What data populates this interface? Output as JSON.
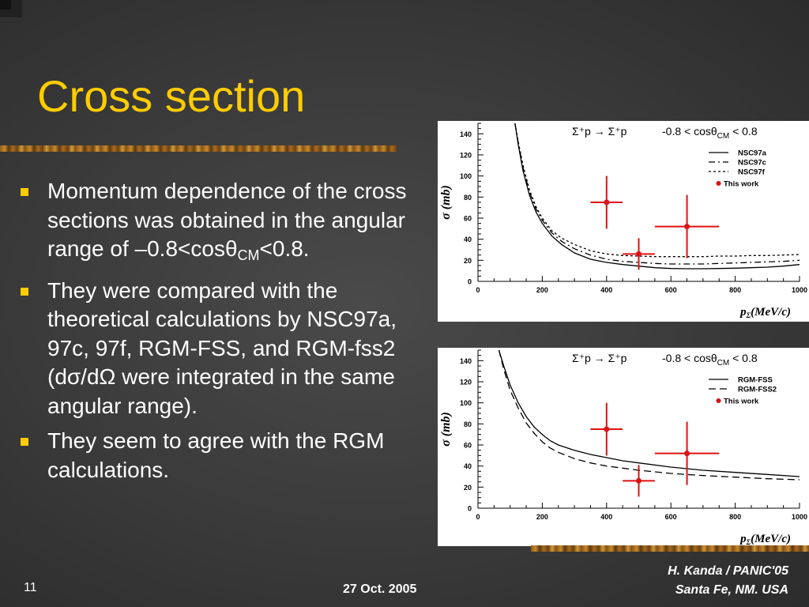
{
  "slide": {
    "title": "Cross section",
    "bullets": [
      {
        "pre": "Momentum dependence of the cross sections was obtained in the angular range of –0.8<cosθ",
        "sub": "CM",
        "post": "<0.8."
      },
      {
        "text": "They were compared with the theoretical calculations by NSC97a, 97c, 97f, RGM-FSS, and RGM-fss2 (dσ/dΩ were integrated in the same angular range)."
      },
      {
        "text": "They seem to agree with the RGM calculations."
      }
    ]
  },
  "footer": {
    "slide_number": "11",
    "date": "27 Oct. 2005",
    "credit_line1": "H. Kanda / PANIC'05",
    "credit_line2": "Santa Fe, NM. USA"
  },
  "chart_data": [
    {
      "type": "line",
      "reaction": "Σ⁺p → Σ⁺p",
      "angle_range": "-0.8 < cosθ",
      "angle_sub": "CM",
      "angle_tail": " < 0.8",
      "ylabel": "σ (mb)",
      "xlabel_main": "p",
      "xlabel_sub": "Σ",
      "xlabel_tail": "(MeV/c)",
      "xlim": [
        0,
        1000
      ],
      "ylim": [
        0,
        150
      ],
      "xticks": [
        "0",
        "200",
        "400",
        "600",
        "800",
        "1000"
      ],
      "yticks": [
        "0",
        "20",
        "40",
        "60",
        "80",
        "100",
        "120",
        "140"
      ],
      "series": [
        {
          "name": "NSC97a",
          "dash": "solid",
          "x": [
            115,
            125,
            140,
            160,
            180,
            200,
            230,
            260,
            300,
            350,
            400,
            450,
            500,
            550,
            600,
            650,
            700,
            750,
            800,
            850,
            900,
            950,
            1000
          ],
          "y": [
            150,
            130,
            105,
            82,
            66,
            55,
            43,
            35,
            27,
            21,
            18,
            16,
            14.5,
            13,
            12.2,
            12,
            12,
            12.2,
            12.5,
            13,
            13.5,
            14.5,
            16
          ]
        },
        {
          "name": "NSC97c",
          "dash": "dashdot",
          "x": [
            115,
            125,
            140,
            160,
            180,
            200,
            230,
            260,
            300,
            350,
            400,
            450,
            500,
            550,
            600,
            650,
            700,
            750,
            800,
            850,
            900,
            950,
            1000
          ],
          "y": [
            150,
            132,
            108,
            85,
            69,
            58,
            46,
            38,
            31,
            25,
            21,
            19,
            18,
            17,
            16.5,
            16.5,
            16.5,
            17,
            17.5,
            18,
            18.5,
            19,
            20
          ]
        },
        {
          "name": "NSC97f",
          "dash": "dotted",
          "x": [
            115,
            125,
            140,
            160,
            180,
            200,
            230,
            260,
            300,
            350,
            400,
            450,
            500,
            550,
            600,
            650,
            700,
            750,
            800,
            850,
            900,
            950,
            1000
          ],
          "y": [
            150,
            133,
            110,
            87,
            71,
            60,
            48,
            41,
            35,
            29,
            26,
            24.5,
            24,
            23.5,
            23.5,
            23.5,
            23.5,
            24,
            24,
            24.5,
            24.5,
            25,
            25.5
          ]
        }
      ],
      "points_label": "This work",
      "points": [
        {
          "x": 400,
          "y": 75,
          "xerr": 50,
          "yerr": 25
        },
        {
          "x": 500,
          "y": 26,
          "xerr": 50,
          "yerr": 15
        },
        {
          "x": 650,
          "y": 52,
          "xerr": 100,
          "yerr": 30
        }
      ]
    },
    {
      "type": "line",
      "reaction": "Σ⁺p → Σ⁺p",
      "angle_range": "-0.8 < cosθ",
      "angle_sub": "CM",
      "angle_tail": " < 0.8",
      "ylabel": "σ (mb)",
      "xlabel_main": "p",
      "xlabel_sub": "Σ",
      "xlabel_tail": "(MeV/c)",
      "xlim": [
        0,
        1000
      ],
      "ylim": [
        0,
        150
      ],
      "xticks": [
        "0",
        "200",
        "400",
        "600",
        "800",
        "1000"
      ],
      "yticks": [
        "0",
        "20",
        "40",
        "60",
        "80",
        "100",
        "120",
        "140"
      ],
      "series": [
        {
          "name": "RGM-FSS",
          "dash": "solid",
          "x": [
            65,
            80,
            100,
            125,
            150,
            175,
            200,
            225,
            250,
            300,
            350,
            400,
            450,
            500,
            600,
            700,
            800,
            900,
            1000
          ],
          "y": [
            150,
            135,
            117,
            100,
            87,
            77,
            70,
            64,
            60,
            55,
            51,
            48,
            45,
            43,
            39,
            36,
            34,
            32,
            30
          ]
        },
        {
          "name": "RGM-FSS2",
          "dash": "dashed",
          "x": [
            65,
            80,
            100,
            125,
            150,
            175,
            200,
            225,
            250,
            300,
            350,
            400,
            450,
            500,
            600,
            700,
            800,
            900,
            1000
          ],
          "y": [
            150,
            132,
            112,
            95,
            81,
            71,
            63,
            57,
            53,
            47,
            43,
            40,
            38,
            36,
            33,
            31,
            29.5,
            28,
            27
          ]
        }
      ],
      "points_label": "This work",
      "points": [
        {
          "x": 400,
          "y": 75,
          "xerr": 50,
          "yerr": 25
        },
        {
          "x": 500,
          "y": 26,
          "xerr": 50,
          "yerr": 15
        },
        {
          "x": 650,
          "y": 52,
          "xerr": 100,
          "yerr": 30
        }
      ]
    }
  ]
}
